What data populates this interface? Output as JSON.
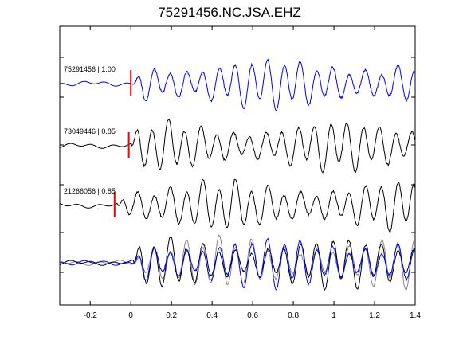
{
  "chart_data": {
    "type": "line",
    "title": "75291456.NC.JSA.EHZ",
    "xlim": [
      -0.35,
      1.4
    ],
    "x_ticks": [
      -0.2,
      0,
      0.2,
      0.4,
      0.6,
      0.8,
      1,
      1.2,
      1.4
    ],
    "x_tick_labels": [
      "-0.2",
      "0",
      "0.2",
      "0.4",
      "0.6",
      "0.8",
      "1",
      "1.2",
      "1.4"
    ],
    "xlabel": "",
    "ylabel": "",
    "grid": false,
    "series": [
      {
        "name": "75291456 | 1.00",
        "color": "#0000ff",
        "pick_time": 0.0,
        "pick_color": "#ff0000"
      },
      {
        "name": "73049446 | 0.85",
        "color": "#000000",
        "pick_time": -0.01,
        "pick_color": "#ff0000"
      },
      {
        "name": "21266056 | 0.85",
        "color": "#000000",
        "pick_time": -0.08,
        "pick_color": "#ff0000"
      }
    ],
    "overlay": {
      "series": [
        "75291456 | 1.00",
        "73049446 | 0.85",
        "21266056 | 0.85"
      ],
      "colors": [
        "#0000ff",
        "#000000",
        "#888888"
      ]
    }
  }
}
